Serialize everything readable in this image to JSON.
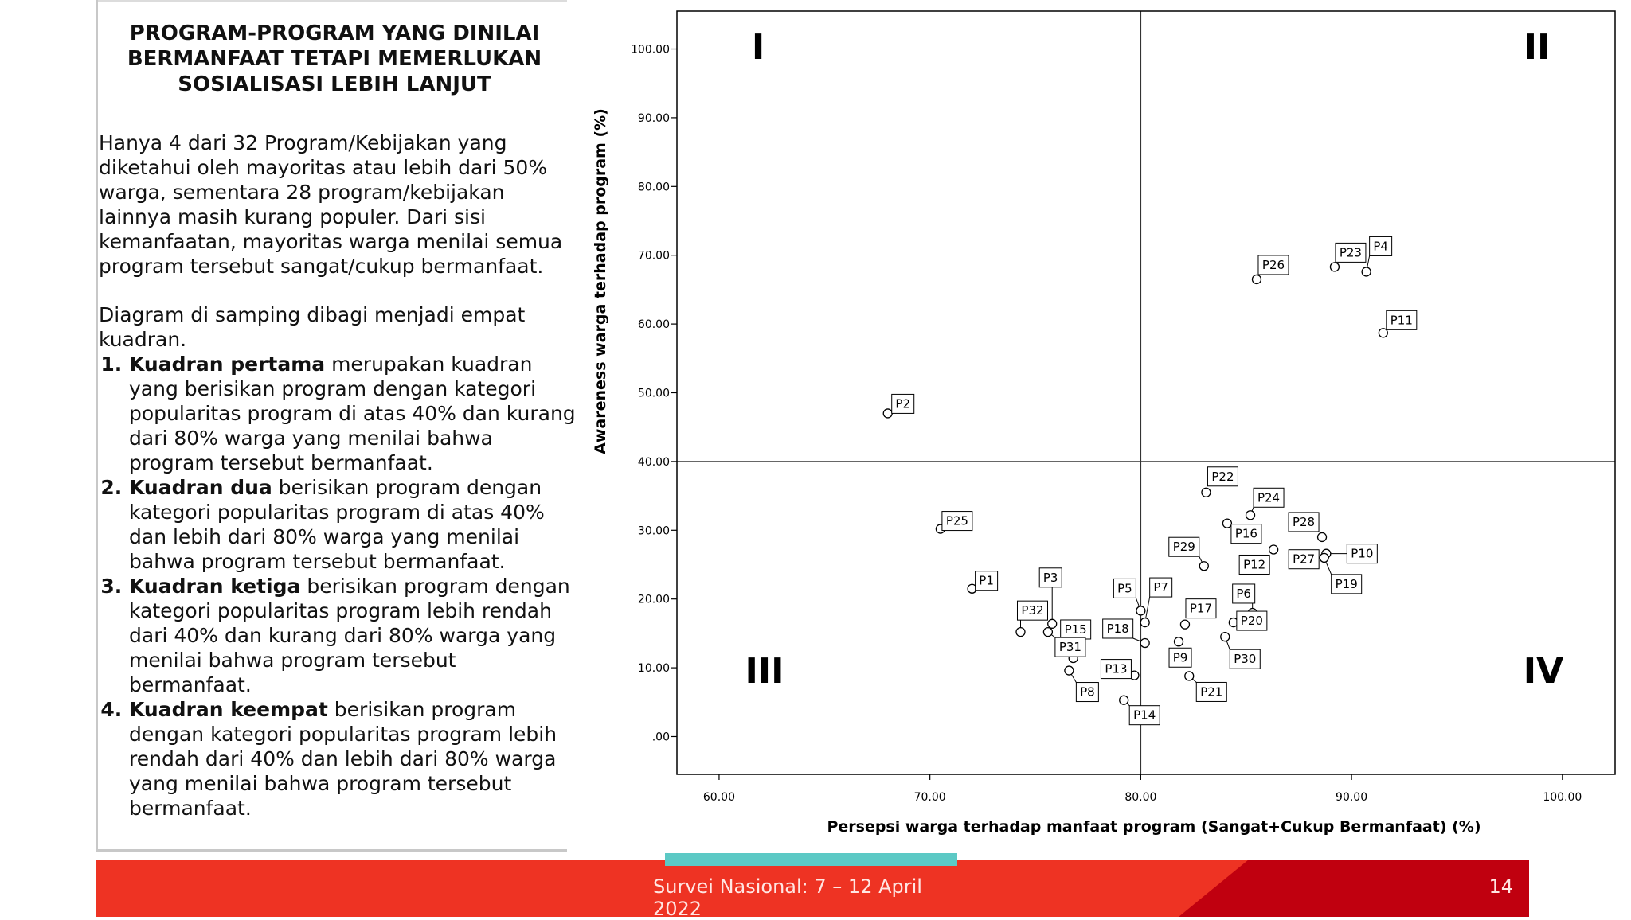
{
  "panel": {
    "title_lines": [
      "PROGRAM-PROGRAM YANG DINILAI",
      "BERMANFAAT TETAPI MEMERLUKAN",
      "SOSIALISASI LEBIH LANJUT"
    ],
    "intro": "Hanya 4 dari 32 Program/Kebijakan yang diketahui oleh mayoritas atau lebih dari 50% warga, sementara 28 program/kebijakan lainnya masih kurang populer. Dari sisi kemanfaatan, mayoritas warga menilai semua program tersebut sangat/cukup bermanfaat.",
    "diagram_intro": "Diagram di samping dibagi menjadi empat kuadran.",
    "items": [
      {
        "bold": "Kuadran pertama",
        "text": " merupakan kuadran yang berisikan program dengan kategori popularitas program di atas 40% dan kurang dari 80% warga yang menilai bahwa program tersebut bermanfaat."
      },
      {
        "bold": "Kuadran dua",
        "text": " berisikan program dengan kategori popularitas program di atas 40% dan lebih dari 80% warga yang menilai bahwa program tersebut bermanfaat."
      },
      {
        "bold": "Kuadran ketiga",
        "text": " berisikan program dengan kategori popularitas program lebih rendah dari 40% dan kurang dari 80% warga yang menilai bahwa program tersebut bermanfaat."
      },
      {
        "bold": "Kuadran keempat",
        "text": " berisikan program dengan kategori popularitas program lebih rendah dari 40% dan lebih dari 80% warga yang menilai bahwa program tersebut bermanfaat."
      }
    ]
  },
  "footer": {
    "survey": "Survei Nasional: 7 – 12 April 2022",
    "page_number": "14",
    "colors": {
      "bar": "#ee3323",
      "dark": "#c0000f",
      "accent": "#5cc9c5"
    }
  },
  "chart_data": {
    "type": "scatter",
    "title": "",
    "xlabel": "Persepsi warga terhadap manfaat program (Sangat+Cukup Bermanfaat) (%)",
    "ylabel": "Awareness warga terhadap program (%)",
    "xlim": [
      58,
      102.5
    ],
    "ylim": [
      -5.5,
      105.5
    ],
    "xticks": [
      60,
      70,
      80,
      90,
      100
    ],
    "xtick_labels": [
      "60.00",
      "70.00",
      "80.00",
      "90.00",
      "100.00"
    ],
    "yticks": [
      0,
      10,
      20,
      30,
      40,
      50,
      60,
      70,
      80,
      90,
      100
    ],
    "ytick_labels": [
      ".00",
      "10.00",
      "20.00",
      "30.00",
      "40.00",
      "50.00",
      "60.00",
      "70.00",
      "80.00",
      "90.00",
      "100.00"
    ],
    "reference_lines": {
      "x": 80,
      "y": 40
    },
    "quadrant_labels": [
      "I",
      "II",
      "III",
      "IV"
    ],
    "grid": false,
    "points": [
      {
        "label": "P1",
        "x": 72.0,
        "y": 21.5
      },
      {
        "label": "P2",
        "x": 68.0,
        "y": 47.0
      },
      {
        "label": "P3",
        "x": 75.8,
        "y": 16.4
      },
      {
        "label": "P4",
        "x": 90.7,
        "y": 67.6
      },
      {
        "label": "P5",
        "x": 80.0,
        "y": 18.3
      },
      {
        "label": "P6",
        "x": 85.3,
        "y": 18.0
      },
      {
        "label": "P7",
        "x": 80.2,
        "y": 16.6
      },
      {
        "label": "P8",
        "x": 76.6,
        "y": 9.6
      },
      {
        "label": "P9",
        "x": 81.8,
        "y": 13.8
      },
      {
        "label": "P10",
        "x": 88.8,
        "y": 26.6
      },
      {
        "label": "P11",
        "x": 91.5,
        "y": 58.7
      },
      {
        "label": "P12",
        "x": 86.3,
        "y": 27.2
      },
      {
        "label": "P13",
        "x": 79.7,
        "y": 8.9
      },
      {
        "label": "P14",
        "x": 79.2,
        "y": 5.3
      },
      {
        "label": "P15",
        "x": 76.8,
        "y": 11.4
      },
      {
        "label": "P16",
        "x": 84.1,
        "y": 31.0
      },
      {
        "label": "P17",
        "x": 82.1,
        "y": 16.3
      },
      {
        "label": "P18",
        "x": 80.2,
        "y": 13.6
      },
      {
        "label": "P19",
        "x": 88.7,
        "y": 26.0
      },
      {
        "label": "P20",
        "x": 84.4,
        "y": 16.6
      },
      {
        "label": "P21",
        "x": 82.3,
        "y": 8.8
      },
      {
        "label": "P22",
        "x": 83.1,
        "y": 35.5
      },
      {
        "label": "P23",
        "x": 89.2,
        "y": 68.3
      },
      {
        "label": "P24",
        "x": 85.2,
        "y": 32.2
      },
      {
        "label": "P25",
        "x": 70.5,
        "y": 30.2
      },
      {
        "label": "P26",
        "x": 85.5,
        "y": 66.5
      },
      {
        "label": "P27",
        "x": 88.0,
        "y": 25.9
      },
      {
        "label": "P28",
        "x": 88.6,
        "y": 29.0
      },
      {
        "label": "P29",
        "x": 83.0,
        "y": 24.8
      },
      {
        "label": "P30",
        "x": 84.0,
        "y": 14.5
      },
      {
        "label": "P31",
        "x": 75.6,
        "y": 15.2
      },
      {
        "label": "P32",
        "x": 74.3,
        "y": 15.2
      }
    ]
  }
}
